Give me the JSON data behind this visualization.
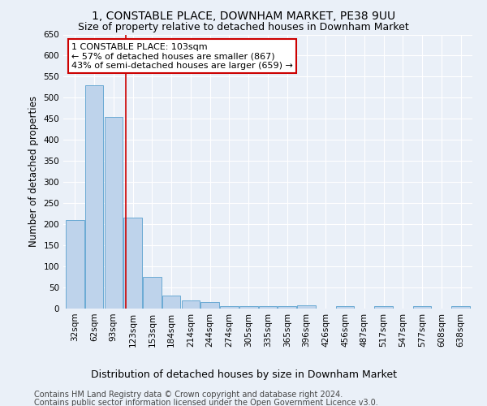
{
  "title": "1, CONSTABLE PLACE, DOWNHAM MARKET, PE38 9UU",
  "subtitle": "Size of property relative to detached houses in Downham Market",
  "xlabel": "Distribution of detached houses by size in Downham Market",
  "ylabel": "Number of detached properties",
  "footer1": "Contains HM Land Registry data © Crown copyright and database right 2024.",
  "footer2": "Contains public sector information licensed under the Open Government Licence v3.0.",
  "categories": [
    "32sqm",
    "62sqm",
    "93sqm",
    "123sqm",
    "153sqm",
    "184sqm",
    "214sqm",
    "244sqm",
    "274sqm",
    "305sqm",
    "335sqm",
    "365sqm",
    "396sqm",
    "426sqm",
    "456sqm",
    "487sqm",
    "517sqm",
    "547sqm",
    "577sqm",
    "608sqm",
    "638sqm"
  ],
  "values": [
    210,
    530,
    455,
    215,
    75,
    30,
    20,
    15,
    5,
    5,
    5,
    5,
    8,
    0,
    5,
    0,
    5,
    0,
    5,
    0,
    5
  ],
  "bar_color": "#bed3eb",
  "bar_edge_color": "#6aaad4",
  "red_line_x": 2.62,
  "annotation_text1": "1 CONSTABLE PLACE: 103sqm",
  "annotation_text2": "← 57% of detached houses are smaller (867)",
  "annotation_text3": "43% of semi-detached houses are larger (659) →",
  "annotation_box_color": "#ffffff",
  "annotation_edge_color": "#cc0000",
  "red_line_color": "#cc0000",
  "ylim": [
    0,
    650
  ],
  "yticks": [
    0,
    50,
    100,
    150,
    200,
    250,
    300,
    350,
    400,
    450,
    500,
    550,
    600,
    650
  ],
  "bg_color": "#eaf0f8",
  "plot_bg_color": "#eaf0f8",
  "grid_color": "#ffffff",
  "title_fontsize": 10,
  "subtitle_fontsize": 9,
  "xlabel_fontsize": 9,
  "ylabel_fontsize": 8.5,
  "tick_fontsize": 7.5,
  "footer_fontsize": 7,
  "annot_fontsize": 8
}
